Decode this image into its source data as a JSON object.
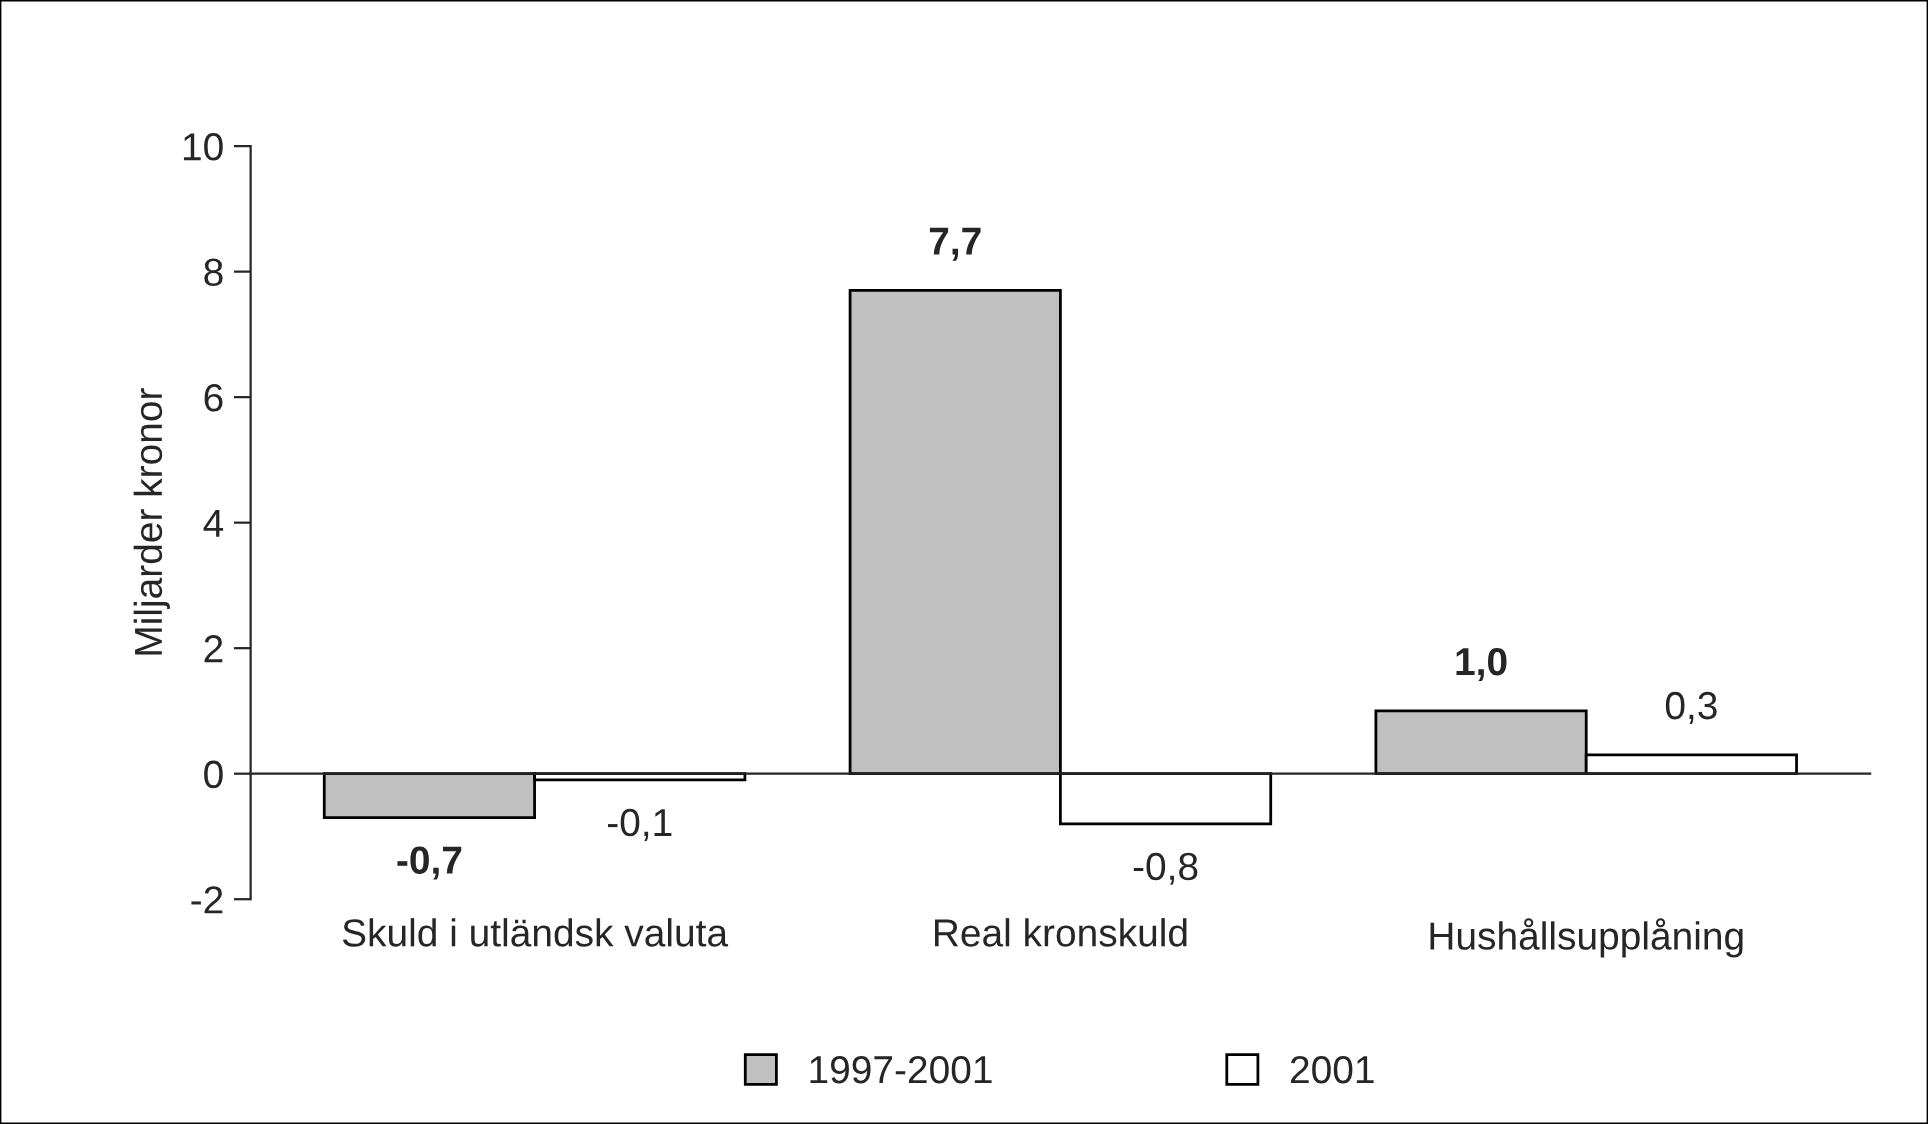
{
  "chart_data": {
    "type": "bar",
    "ylabel": "Miljarder kronor",
    "categories": [
      "Skuld i utländsk valuta",
      "Real kronskuld",
      "Hushållsupplåning"
    ],
    "series": [
      {
        "name": "1997-2001",
        "color": "#c0c0c0",
        "values": [
          -0.7,
          7.7,
          1.0
        ],
        "value_labels": [
          "-0,7",
          "7,7",
          "1,0"
        ]
      },
      {
        "name": "2001",
        "color": "#ffffff",
        "values": [
          -0.1,
          -0.8,
          0.3
        ],
        "value_labels": [
          "-0,1",
          "-0,8",
          "0,3"
        ]
      }
    ],
    "ylim": [
      -2,
      10
    ],
    "yticks": [
      -2,
      0,
      2,
      4,
      6,
      8,
      10
    ],
    "legend": "bottom"
  }
}
